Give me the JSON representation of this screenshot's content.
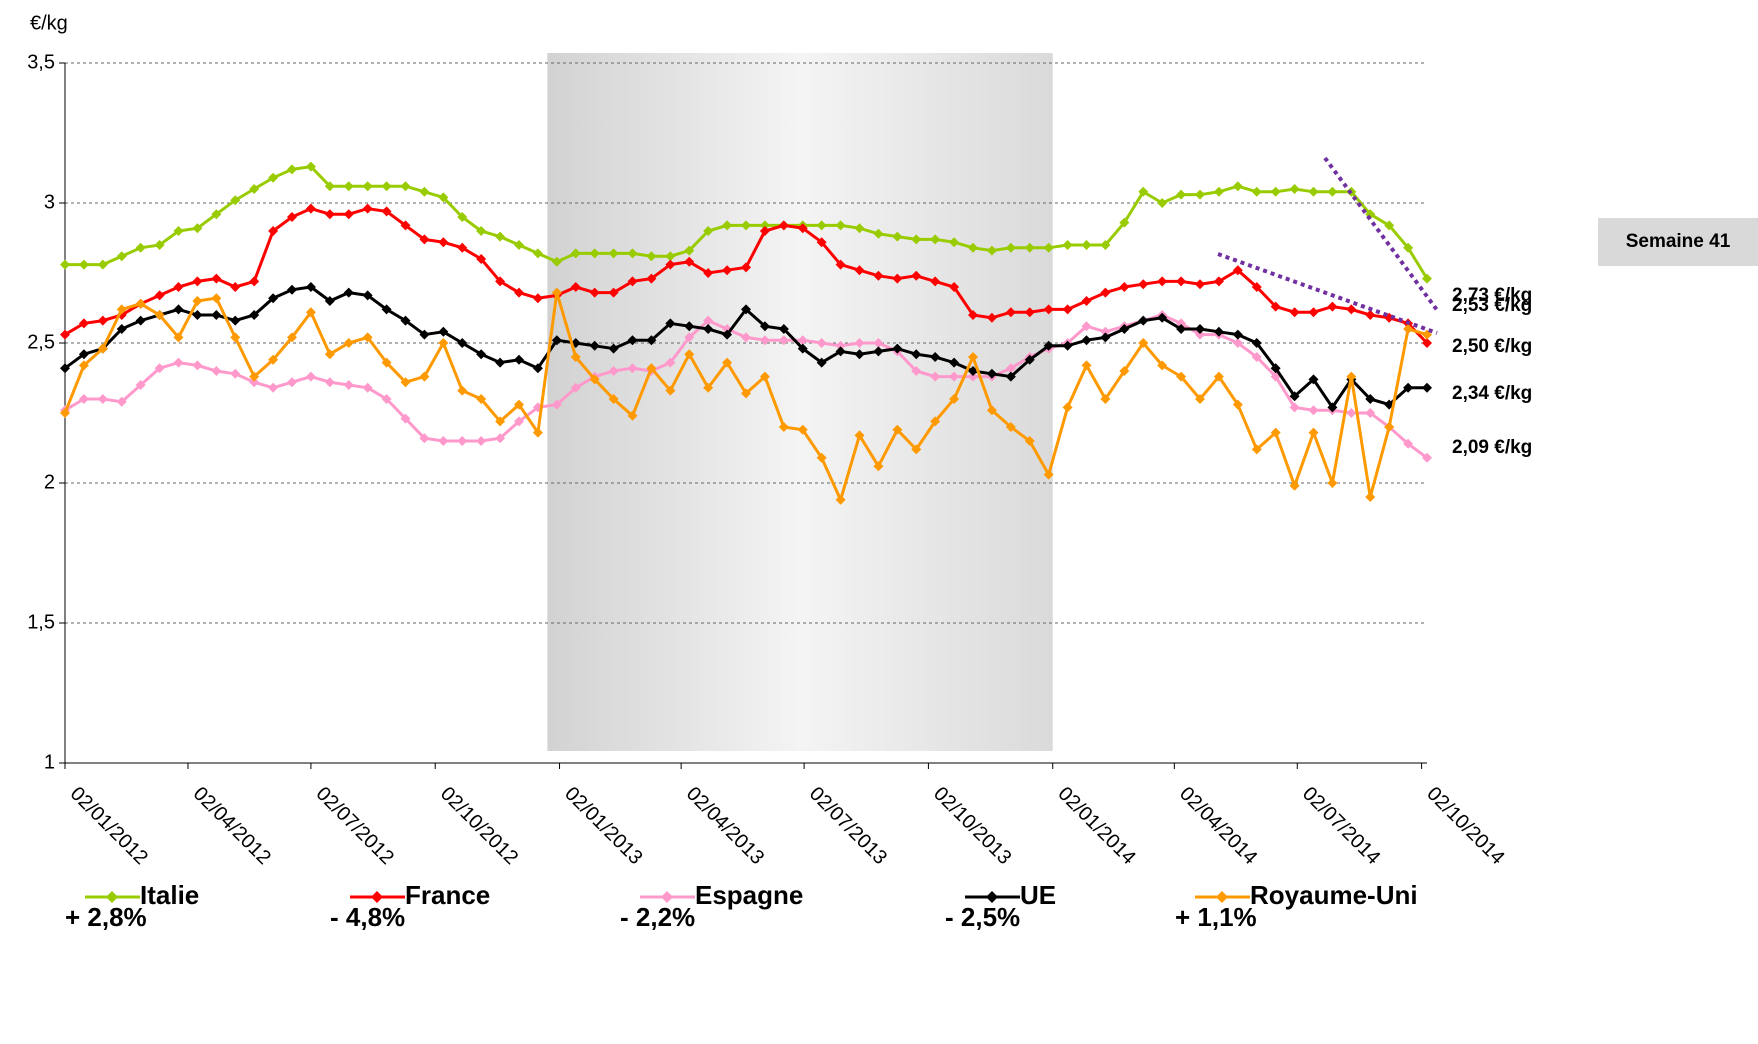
{
  "chart_data": {
    "type": "line",
    "y_label": "€/kg",
    "annotation": "Semaine 41",
    "x": [
      "02/01/2012",
      "16/01/2012",
      "30/01/2012",
      "13/02/2012",
      "27/02/2012",
      "12/03/2012",
      "26/03/2012",
      "09/04/2012",
      "23/04/2012",
      "07/05/2012",
      "21/05/2012",
      "04/06/2012",
      "18/06/2012",
      "02/07/2012",
      "16/07/2012",
      "30/07/2012",
      "13/08/2012",
      "27/08/2012",
      "10/09/2012",
      "24/09/2012",
      "08/10/2012",
      "22/10/2012",
      "05/11/2012",
      "19/11/2012",
      "03/12/2012",
      "17/12/2012",
      "31/12/2012",
      "14/01/2013",
      "28/01/2013",
      "11/02/2013",
      "25/02/2013",
      "11/03/2013",
      "25/03/2013",
      "08/04/2013",
      "22/04/2013",
      "06/05/2013",
      "20/05/2013",
      "03/06/2013",
      "17/06/2013",
      "01/07/2013",
      "15/07/2013",
      "29/07/2013",
      "12/08/2013",
      "26/08/2013",
      "09/09/2013",
      "23/09/2013",
      "07/10/2013",
      "21/10/2013",
      "04/11/2013",
      "18/11/2013",
      "02/12/2013",
      "16/12/2013",
      "30/12/2013",
      "13/01/2014",
      "27/01/2014",
      "10/02/2014",
      "24/02/2014",
      "10/03/2014",
      "24/03/2014",
      "07/04/2014",
      "21/04/2014",
      "05/05/2014",
      "19/05/2014",
      "02/06/2014",
      "16/06/2014",
      "30/06/2014",
      "14/07/2014",
      "28/07/2014",
      "11/08/2014",
      "25/08/2014",
      "08/09/2014",
      "22/09/2014",
      "06/10/2014"
    ],
    "xlim": [
      "02/01/2012",
      "06/10/2014"
    ],
    "xticks": [
      "02/01/2012",
      "02/04/2012",
      "02/07/2012",
      "02/10/2012",
      "02/01/2013",
      "02/04/2013",
      "02/07/2013",
      "02/10/2013",
      "02/01/2014",
      "02/04/2014",
      "02/07/2014",
      "02/10/2014"
    ],
    "shaded_x": [
      "24/12/2012",
      "02/01/2014"
    ],
    "ylim": [
      1,
      3.5
    ],
    "yticks": [
      1,
      {
        "value": 1.5,
        "label": "1,5"
      },
      2,
      {
        "value": 2.5,
        "label": "2,5"
      },
      3,
      {
        "value": 3.5,
        "label": "3,5"
      }
    ],
    "grid": true,
    "series": [
      {
        "name": "Italie",
        "color": "#99cc00",
        "end_label": "2,73 €/kg",
        "change": "+ 2,8%",
        "values": [
          2.78,
          2.78,
          2.78,
          2.81,
          2.84,
          2.85,
          2.9,
          2.91,
          2.96,
          3.01,
          3.05,
          3.09,
          3.12,
          3.13,
          3.06,
          3.06,
          3.06,
          3.06,
          3.06,
          3.04,
          3.02,
          2.95,
          2.9,
          2.88,
          2.85,
          2.82,
          2.79,
          2.82,
          2.82,
          2.82,
          2.82,
          2.81,
          2.81,
          2.83,
          2.9,
          2.92,
          2.92,
          2.92,
          2.92,
          2.92,
          2.92,
          2.92,
          2.91,
          2.89,
          2.88,
          2.87,
          2.87,
          2.86,
          2.84,
          2.83,
          2.84,
          2.84,
          2.84,
          2.85,
          2.85,
          2.85,
          2.93,
          3.04,
          3.0,
          3.03,
          3.03,
          3.04,
          3.06,
          3.04,
          3.04,
          3.05,
          3.04,
          3.04,
          3.04,
          2.96,
          2.92,
          2.84,
          2.73
        ]
      },
      {
        "name": "France",
        "color": "#ff0000",
        "end_label": "2,50 €/kg",
        "change": "- 4,8%",
        "values": [
          2.53,
          2.57,
          2.58,
          2.6,
          2.64,
          2.67,
          2.7,
          2.72,
          2.73,
          2.7,
          2.72,
          2.9,
          2.95,
          2.98,
          2.96,
          2.96,
          2.98,
          2.97,
          2.92,
          2.87,
          2.86,
          2.84,
          2.8,
          2.72,
          2.68,
          2.66,
          2.67,
          2.7,
          2.68,
          2.68,
          2.72,
          2.73,
          2.78,
          2.79,
          2.75,
          2.76,
          2.77,
          2.9,
          2.92,
          2.91,
          2.86,
          2.78,
          2.76,
          2.74,
          2.73,
          2.74,
          2.72,
          2.7,
          2.6,
          2.59,
          2.61,
          2.61,
          2.62,
          2.62,
          2.65,
          2.68,
          2.7,
          2.71,
          2.72,
          2.72,
          2.71,
          2.72,
          2.76,
          2.7,
          2.63,
          2.61,
          2.61,
          2.63,
          2.62,
          2.6,
          2.59,
          2.57,
          2.5
        ]
      },
      {
        "name": "Espagne",
        "color": "#ff99cc",
        "end_label": "2,09 €/kg",
        "change": "- 2,2%",
        "values": [
          2.26,
          2.3,
          2.3,
          2.29,
          2.35,
          2.41,
          2.43,
          2.42,
          2.4,
          2.39,
          2.36,
          2.34,
          2.36,
          2.38,
          2.36,
          2.35,
          2.34,
          2.3,
          2.23,
          2.16,
          2.15,
          2.15,
          2.15,
          2.16,
          2.22,
          2.27,
          2.28,
          2.34,
          2.38,
          2.4,
          2.41,
          2.4,
          2.43,
          2.52,
          2.58,
          2.55,
          2.52,
          2.51,
          2.51,
          2.51,
          2.5,
          2.49,
          2.5,
          2.5,
          2.47,
          2.4,
          2.38,
          2.38,
          2.38,
          2.38,
          2.41,
          2.45,
          2.48,
          2.5,
          2.56,
          2.54,
          2.56,
          2.58,
          2.6,
          2.57,
          2.53,
          2.53,
          2.5,
          2.45,
          2.38,
          2.27,
          2.26,
          2.26,
          2.25,
          2.25,
          2.2,
          2.14,
          2.09
        ]
      },
      {
        "name": "UE",
        "color": "#000000",
        "end_label": "2,34 €/kg",
        "change": "- 2,5%",
        "values": [
          2.41,
          2.46,
          2.48,
          2.55,
          2.58,
          2.6,
          2.62,
          2.6,
          2.6,
          2.58,
          2.6,
          2.66,
          2.69,
          2.7,
          2.65,
          2.68,
          2.67,
          2.62,
          2.58,
          2.53,
          2.54,
          2.5,
          2.46,
          2.43,
          2.44,
          2.41,
          2.51,
          2.5,
          2.49,
          2.48,
          2.51,
          2.51,
          2.57,
          2.56,
          2.55,
          2.53,
          2.62,
          2.56,
          2.55,
          2.48,
          2.43,
          2.47,
          2.46,
          2.47,
          2.48,
          2.46,
          2.45,
          2.43,
          2.4,
          2.39,
          2.38,
          2.44,
          2.49,
          2.49,
          2.51,
          2.52,
          2.55,
          2.58,
          2.59,
          2.55,
          2.55,
          2.54,
          2.53,
          2.5,
          2.41,
          2.31,
          2.37,
          2.27,
          2.37,
          2.3,
          2.28,
          2.34,
          2.34
        ]
      },
      {
        "name": "Royaume-Uni",
        "color": "#ff9900",
        "end_label": "2,53 €/kg",
        "change": "+ 1,1%",
        "values": [
          2.25,
          2.42,
          2.48,
          2.62,
          2.64,
          2.6,
          2.52,
          2.65,
          2.66,
          2.52,
          2.38,
          2.44,
          2.52,
          2.61,
          2.46,
          2.5,
          2.52,
          2.43,
          2.36,
          2.38,
          2.5,
          2.33,
          2.3,
          2.22,
          2.28,
          2.18,
          2.68,
          2.45,
          2.37,
          2.3,
          2.24,
          2.41,
          2.33,
          2.46,
          2.34,
          2.43,
          2.32,
          2.38,
          2.2,
          2.19,
          2.09,
          1.94,
          2.17,
          2.06,
          2.19,
          2.12,
          2.22,
          2.3,
          2.45,
          2.26,
          2.2,
          2.15,
          2.03,
          2.27,
          2.42,
          2.3,
          2.4,
          2.5,
          2.42,
          2.38,
          2.3,
          2.38,
          2.28,
          2.12,
          2.18,
          1.99,
          2.18,
          2.0,
          2.38,
          1.95,
          2.2,
          2.55,
          2.53
        ]
      }
    ]
  }
}
